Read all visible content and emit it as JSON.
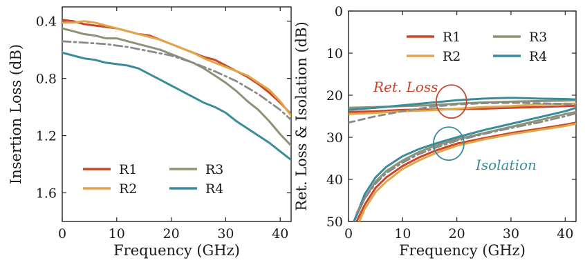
{
  "chart_data": [
    {
      "type": "line",
      "xlabel": "Frequency (GHz)",
      "ylabel": "Insertion Loss (dB)",
      "xlim": [
        0,
        42
      ],
      "ylim": [
        0.3,
        1.8
      ],
      "y_inverted": true,
      "xticks": [
        "0",
        "10",
        "20",
        "30",
        "40"
      ],
      "yticks": [
        "0.4",
        "0.8",
        "1.2",
        "1.6"
      ],
      "grid": false,
      "legend_position": "bottom-left",
      "series": [
        {
          "name": "R1",
          "color": "#c9462a",
          "style": "solid",
          "x": [
            0,
            2,
            4,
            6,
            8,
            10,
            12,
            14,
            16,
            18,
            20,
            22,
            24,
            26,
            28,
            30,
            32,
            34,
            36,
            38,
            40,
            42
          ],
          "y": [
            0.39,
            0.4,
            0.42,
            0.43,
            0.44,
            0.45,
            0.47,
            0.49,
            0.5,
            0.53,
            0.56,
            0.59,
            0.62,
            0.65,
            0.67,
            0.71,
            0.75,
            0.79,
            0.84,
            0.9,
            0.97,
            1.05
          ]
        },
        {
          "name": "R2",
          "color": "#e0a64a",
          "style": "solid",
          "x": [
            0,
            2,
            4,
            6,
            8,
            10,
            12,
            14,
            16,
            18,
            20,
            22,
            24,
            26,
            28,
            30,
            32,
            34,
            36,
            38,
            40,
            42
          ],
          "y": [
            0.41,
            0.41,
            0.4,
            0.41,
            0.43,
            0.45,
            0.47,
            0.49,
            0.51,
            0.53,
            0.56,
            0.59,
            0.62,
            0.66,
            0.69,
            0.72,
            0.75,
            0.78,
            0.83,
            0.88,
            0.96,
            1.06
          ]
        },
        {
          "name": "R3",
          "color": "#8c9478",
          "style": "solid",
          "x": [
            0,
            2,
            4,
            6,
            8,
            10,
            12,
            14,
            16,
            18,
            20,
            22,
            24,
            26,
            28,
            30,
            32,
            34,
            36,
            38,
            40,
            42
          ],
          "y": [
            0.45,
            0.47,
            0.49,
            0.5,
            0.52,
            0.52,
            0.54,
            0.56,
            0.58,
            0.6,
            0.63,
            0.66,
            0.69,
            0.73,
            0.78,
            0.83,
            0.89,
            0.96,
            1.02,
            1.1,
            1.19,
            1.27
          ]
        },
        {
          "name": "R4",
          "color": "#3b8b9a",
          "style": "solid",
          "x": [
            0,
            2,
            4,
            6,
            8,
            10,
            12,
            14,
            16,
            18,
            20,
            22,
            24,
            26,
            28,
            30,
            32,
            34,
            36,
            38,
            40,
            42
          ],
          "y": [
            0.62,
            0.64,
            0.66,
            0.67,
            0.69,
            0.7,
            0.71,
            0.73,
            0.77,
            0.81,
            0.85,
            0.89,
            0.93,
            0.97,
            1.0,
            1.04,
            1.1,
            1.15,
            1.2,
            1.25,
            1.31,
            1.37
          ]
        },
        {
          "name": "",
          "color": "#8a8a8a",
          "style": "dashdot",
          "x": [
            0,
            4,
            8,
            12,
            16,
            20,
            24,
            28,
            32,
            36,
            40,
            42
          ],
          "y": [
            0.54,
            0.55,
            0.56,
            0.58,
            0.61,
            0.64,
            0.69,
            0.75,
            0.82,
            0.91,
            1.02,
            1.09
          ]
        }
      ]
    },
    {
      "type": "line",
      "xlabel": "Frequency (GHz)",
      "ylabel": "Ret. Loss & Isolation (dB)",
      "xlim": [
        0,
        42
      ],
      "ylim": [
        0,
        50
      ],
      "y_inverted": true,
      "xticks": [
        "0",
        "10",
        "20",
        "30",
        "40"
      ],
      "yticks": [
        "0",
        "10",
        "20",
        "30",
        "40",
        "50"
      ],
      "grid": false,
      "legend_position": "top-right",
      "annotations": [
        {
          "text": "Ret. Loss",
          "color": "#c9462a"
        },
        {
          "text": "Isolation",
          "color": "#3b8b9a"
        }
      ],
      "series": [
        {
          "name": "R1",
          "group": "return-loss",
          "color": "#c9462a",
          "style": "solid",
          "x": [
            0,
            5,
            10,
            15,
            20,
            25,
            30,
            35,
            40,
            42
          ],
          "y": [
            24,
            23.8,
            23.5,
            23.4,
            23.3,
            23.2,
            23.0,
            22.8,
            22.6,
            22.5
          ]
        },
        {
          "name": "R2",
          "group": "return-loss",
          "color": "#e0a64a",
          "style": "solid",
          "x": [
            0,
            5,
            10,
            15,
            20,
            25,
            30,
            35,
            40,
            42
          ],
          "y": [
            24.5,
            24.2,
            23.8,
            23.6,
            23.2,
            22.8,
            22.6,
            22.2,
            22.0,
            22.0
          ]
        },
        {
          "name": "R3",
          "group": "return-loss",
          "color": "#8c9478",
          "style": "solid",
          "x": [
            0,
            5,
            10,
            15,
            20,
            25,
            30,
            35,
            40,
            42
          ],
          "y": [
            23.0,
            22.8,
            22.6,
            22.4,
            22.0,
            21.7,
            21.5,
            21.4,
            21.3,
            21.2
          ]
        },
        {
          "name": "R4",
          "group": "return-loss",
          "color": "#3b8b9a",
          "style": "solid",
          "x": [
            0,
            5,
            10,
            15,
            20,
            25,
            30,
            35,
            40,
            42
          ],
          "y": [
            23.5,
            23.0,
            22.4,
            21.8,
            21.2,
            20.8,
            20.6,
            20.8,
            20.9,
            21.0
          ]
        },
        {
          "name": "",
          "group": "return-loss-model",
          "color": "#8a8a8a",
          "style": "dashed",
          "x": [
            0,
            5,
            10,
            15,
            20,
            25,
            30,
            35,
            40,
            42
          ],
          "y": [
            26.5,
            25.0,
            23.8,
            22.8,
            22.2,
            21.9,
            21.8,
            21.9,
            22.1,
            22.3
          ]
        },
        {
          "name": "R1",
          "group": "isolation",
          "color": "#c9462a",
          "style": "solid",
          "x": [
            1.5,
            3,
            5,
            7,
            10,
            13,
            16,
            20,
            25,
            30,
            35,
            40,
            42
          ],
          "y": [
            50,
            46,
            42,
            39.5,
            36.8,
            34.8,
            33.2,
            31.5,
            30.2,
            29.0,
            28.0,
            27.0,
            26.5
          ]
        },
        {
          "name": "R2",
          "group": "isolation",
          "color": "#e0a64a",
          "style": "solid",
          "x": [
            2,
            3,
            5,
            7,
            10,
            13,
            16,
            20,
            25,
            30,
            35,
            40,
            42
          ],
          "y": [
            50,
            47,
            43,
            40.5,
            37.5,
            35.5,
            33.8,
            32.0,
            30.5,
            29.3,
            28.3,
            27.3,
            26.8
          ]
        },
        {
          "name": "R3",
          "group": "isolation",
          "color": "#8c9478",
          "style": "solid",
          "x": [
            1,
            3,
            5,
            7,
            10,
            13,
            16,
            20,
            25,
            30,
            35,
            40,
            42
          ],
          "y": [
            50,
            44.5,
            40.5,
            38.0,
            35.5,
            33.5,
            32.0,
            30.5,
            29.0,
            27.5,
            26.0,
            24.5,
            24.0
          ]
        },
        {
          "name": "R4",
          "group": "isolation",
          "color": "#3b8b9a",
          "style": "solid",
          "x": [
            1,
            3,
            5,
            7,
            10,
            13,
            16,
            20,
            25,
            30,
            35,
            40,
            42
          ],
          "y": [
            50,
            43.5,
            39.5,
            37.0,
            34.5,
            32.8,
            31.5,
            30.0,
            28.3,
            26.8,
            25.3,
            23.8,
            23.0
          ]
        },
        {
          "name": "",
          "group": "isolation-model",
          "color": "#8a8a8a",
          "style": "dashdot",
          "x": [
            1.5,
            3,
            5,
            7,
            10,
            13,
            16,
            20,
            25,
            30,
            35,
            40,
            42
          ],
          "y": [
            48,
            44.5,
            41,
            38.5,
            36.0,
            34.0,
            32.5,
            30.8,
            29.2,
            27.8,
            26.5,
            25.0,
            24.3
          ]
        }
      ]
    }
  ]
}
